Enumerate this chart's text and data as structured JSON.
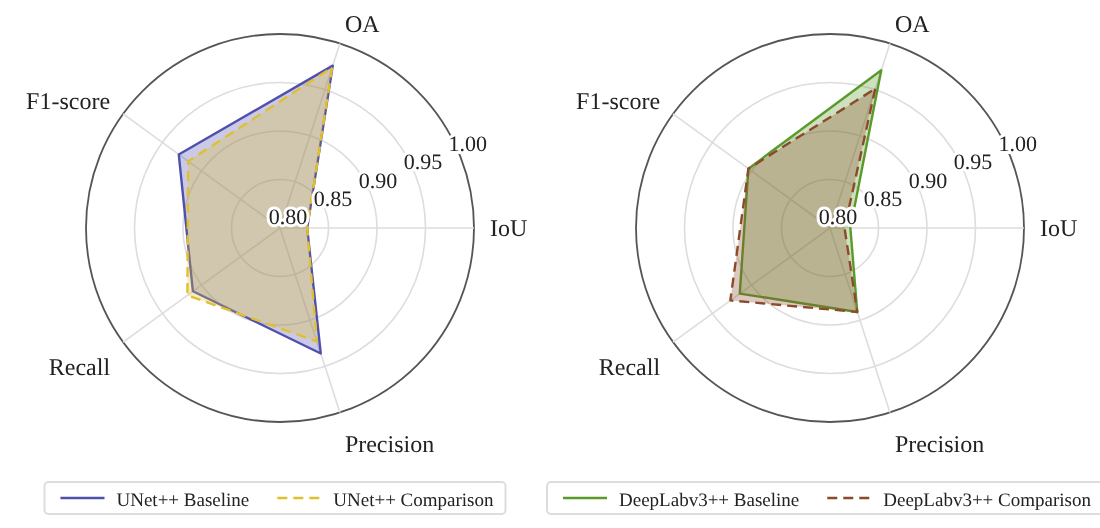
{
  "chart_data": [
    {
      "type": "radar",
      "categories": [
        "OA",
        "IoU",
        "Precision",
        "Recall",
        "F1-score"
      ],
      "ylim": [
        0.8,
        1.0
      ],
      "yticks": [
        {
          "value": 0.8,
          "label": "0.80"
        },
        {
          "value": 0.85,
          "label": "0.85"
        },
        {
          "value": 0.9,
          "label": "0.90"
        },
        {
          "value": 0.95,
          "label": "0.95"
        },
        {
          "value": 1.0,
          "label": "1.00"
        }
      ],
      "grid": true,
      "legend": "bottom",
      "series": [
        {
          "name": "UNet++ Baseline",
          "color": "#4f4fae",
          "line_style": "solid",
          "values": [
            0.976,
            0.828,
            0.936,
            0.911,
            0.929
          ]
        },
        {
          "name": "UNet++ Comparison",
          "color": "#e0c030",
          "line_style": "dashed",
          "values": [
            0.974,
            0.828,
            0.923,
            0.918,
            0.917
          ]
        }
      ]
    },
    {
      "type": "radar",
      "categories": [
        "OA",
        "IoU",
        "Precision",
        "Recall",
        "F1-score"
      ],
      "ylim": [
        0.8,
        1.0
      ],
      "yticks": [
        {
          "value": 0.8,
          "label": "0.80"
        },
        {
          "value": 0.85,
          "label": "0.85"
        },
        {
          "value": 0.9,
          "label": "0.90"
        },
        {
          "value": 0.95,
          "label": "0.95"
        },
        {
          "value": 1.0,
          "label": "1.00"
        }
      ],
      "grid": true,
      "legend": "bottom",
      "series": [
        {
          "name": "DeepLabv3++ Baseline",
          "color": "#5a9a2a",
          "line_style": "solid",
          "values": [
            0.971,
            0.821,
            0.891,
            0.915,
            0.904
          ]
        },
        {
          "name": "DeepLabv3++ Comparison",
          "color": "#8b4a2a",
          "line_style": "dashed",
          "values": [
            0.951,
            0.815,
            0.891,
            0.927,
            0.904
          ]
        }
      ]
    }
  ]
}
